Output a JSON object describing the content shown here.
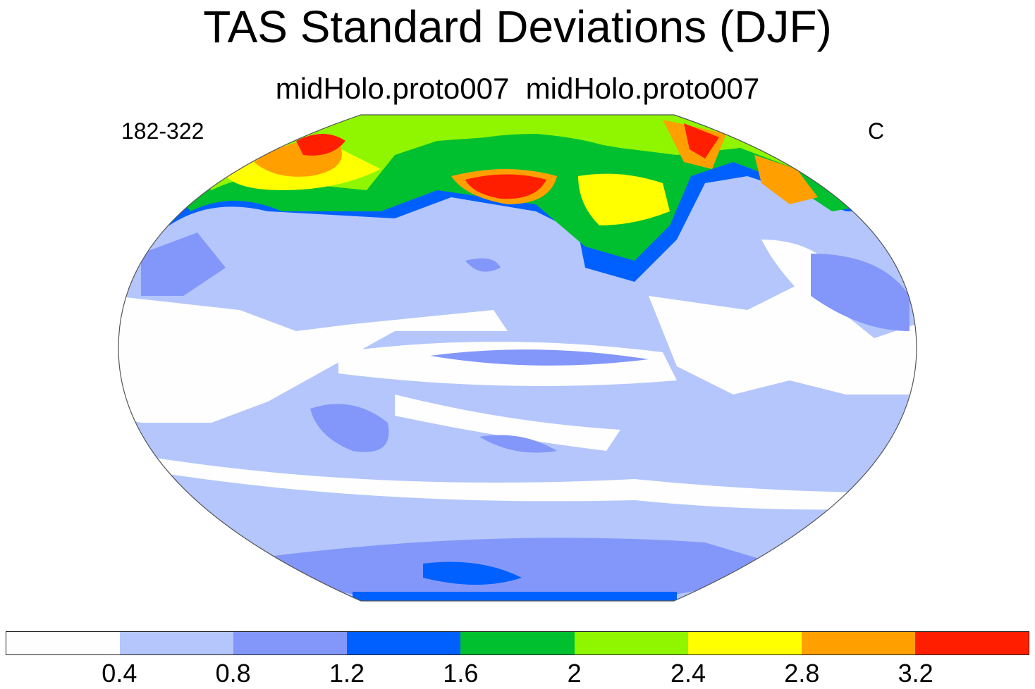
{
  "title": "TAS Standard Deviations (DJF)",
  "subtitle": "midHolo.proto007  midHolo.proto007",
  "left_label": "182-322",
  "right_label": "C",
  "colorbar": {
    "colors": [
      "#fefefe",
      "#b4c6fb",
      "#8397fa",
      "#0060ff",
      "#00c030",
      "#8ff600",
      "#ffff00",
      "#ffa000",
      "#ff1e00"
    ],
    "ticks": [
      "0.4",
      "0.8",
      "1.2",
      "1.6",
      "2",
      "2.4",
      "2.8",
      "3.2"
    ]
  }
}
